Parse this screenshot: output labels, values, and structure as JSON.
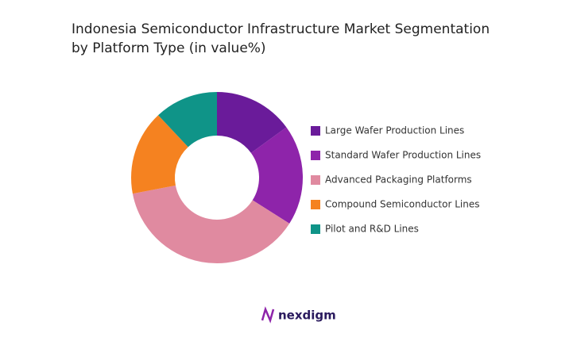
{
  "chart_data": {
    "type": "donut",
    "title": "Indonesia Semiconductor Infrastructure Market Segmentation",
    "subtitle": "by Platform Type (in value%)",
    "series": [
      {
        "name": "Large Wafer Production Lines",
        "color": "#6a1b9a",
        "values": [
          15
        ]
      },
      {
        "name": "Standard Wafer Production Lines",
        "color": "#8e24aa",
        "values": [
          19
        ]
      },
      {
        "name": "Advanced Packaging Platforms",
        "color": "#e08aa0",
        "values": [
          38
        ]
      },
      {
        "name": "Compound Semiconductor Lines",
        "color": "#f58220",
        "values": [
          16
        ]
      },
      {
        "name": "Pilot and R&D Lines",
        "color": "#0f9488",
        "values": [
          12
        ]
      }
    ]
  },
  "footer": {
    "logo": "nexdigm"
  }
}
